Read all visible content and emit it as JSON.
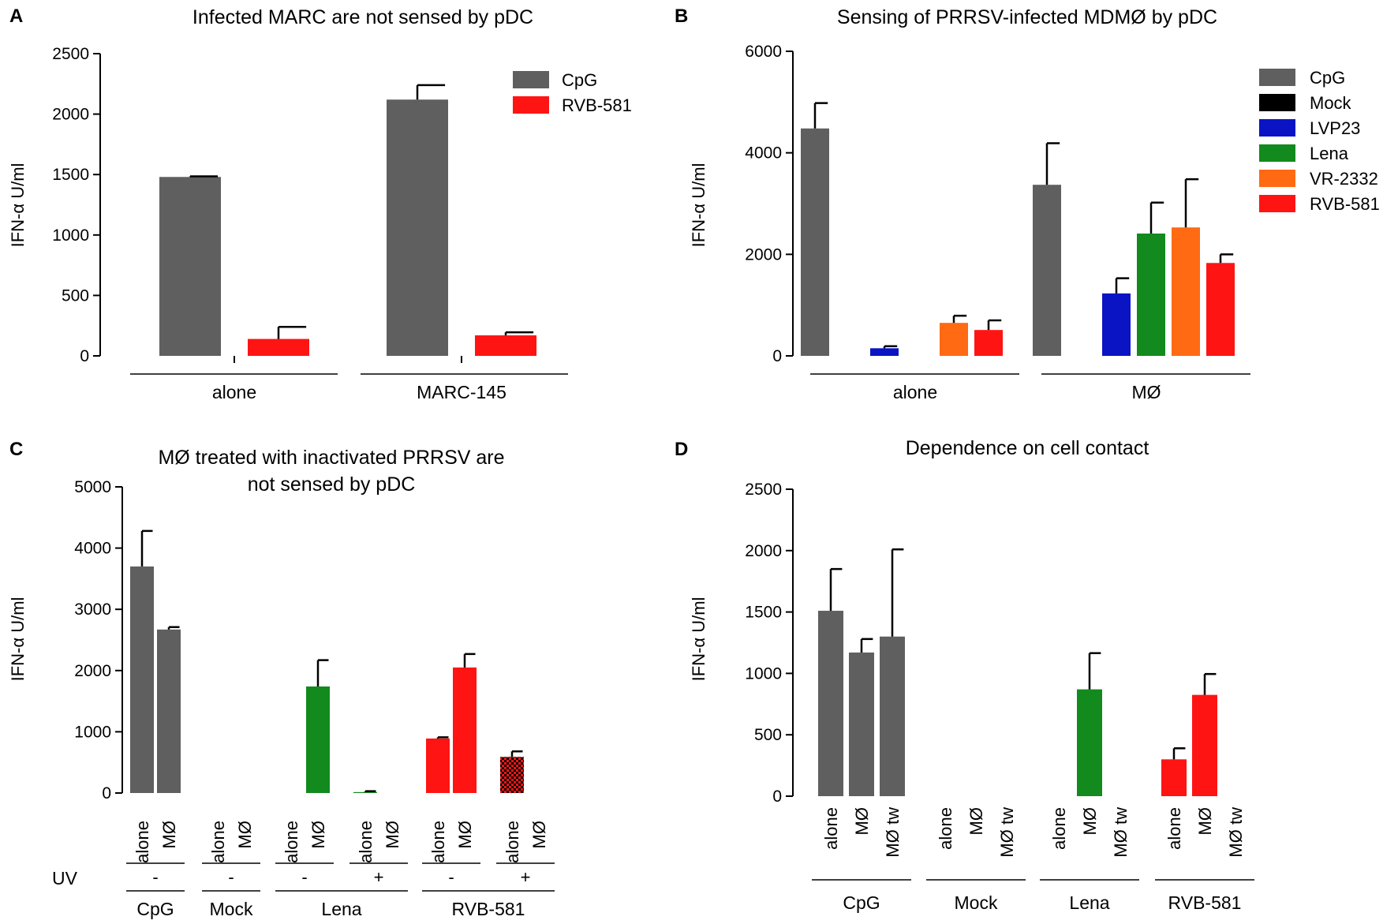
{
  "colors": {
    "CpG": "#5f5f5f",
    "Mock": "#000000",
    "LVP23": "#0a14c4",
    "Lena": "#128a1e",
    "VR-2332": "#ff6a13",
    "RVB-581": "#ff1414"
  },
  "chart_data": [
    {
      "panel": "A",
      "type": "bar",
      "title": "Infected MARC are not sensed by pDC",
      "ylabel": "IFN-α U/ml",
      "ylim": [
        0,
        2500
      ],
      "yticks": [
        "0",
        "500",
        "1000",
        "1500",
        "2000",
        "2500"
      ],
      "groups": [
        "alone",
        "MARC-145"
      ],
      "legend": [
        "CpG",
        "RVB-581"
      ],
      "series": [
        {
          "name": "CpG",
          "values": [
            1480,
            2120
          ],
          "errors": [
            5,
            120
          ]
        },
        {
          "name": "RVB-581",
          "values": [
            140,
            170
          ],
          "errors": [
            100,
            25
          ]
        }
      ]
    },
    {
      "panel": "B",
      "type": "bar",
      "title": "Sensing of PRRSV-infected MDMØ by pDC",
      "ylabel": "IFN-α U/ml",
      "ylim": [
        0,
        6000
      ],
      "yticks": [
        "0",
        "2000",
        "4000",
        "6000"
      ],
      "groups": [
        "alone",
        "MØ"
      ],
      "legend": [
        "CpG",
        "Mock",
        "LVP23",
        "Lena",
        "VR-2332",
        "RVB-581"
      ],
      "series": [
        {
          "name": "CpG",
          "values": [
            4480,
            3370
          ],
          "errors": [
            500,
            820
          ]
        },
        {
          "name": "Mock",
          "values": [
            0,
            0
          ],
          "errors": [
            0,
            0
          ]
        },
        {
          "name": "LVP23",
          "values": [
            150,
            1230
          ],
          "errors": [
            40,
            300
          ]
        },
        {
          "name": "Lena",
          "values": [
            0,
            2410
          ],
          "errors": [
            0,
            610
          ]
        },
        {
          "name": "VR-2332",
          "values": [
            650,
            2530
          ],
          "errors": [
            140,
            950
          ]
        },
        {
          "name": "RVB-581",
          "values": [
            510,
            1830
          ],
          "errors": [
            190,
            170
          ]
        }
      ]
    },
    {
      "panel": "C",
      "type": "bar",
      "title": [
        "MØ treated with inactivated PRRSV are",
        "not sensed by pDC"
      ],
      "ylabel": "IFN-α U/ml",
      "ylim": [
        0,
        5000
      ],
      "yticks": [
        "0",
        "1000",
        "2000",
        "3000",
        "4000",
        "5000"
      ],
      "row_label": "UV",
      "groups": [
        {
          "label": "CpG",
          "uv": [
            "-"
          ],
          "bars": [
            {
              "cat": "alone",
              "value": 3700,
              "error": 580,
              "color": "CpG"
            },
            {
              "cat": "MØ",
              "value": 2670,
              "error": 40,
              "color": "CpG"
            }
          ]
        },
        {
          "label": "Mock",
          "uv": [
            "-"
          ],
          "bars": [
            {
              "cat": "alone",
              "value": 0,
              "error": 0,
              "color": "Mock"
            },
            {
              "cat": "MØ",
              "value": 0,
              "error": 0,
              "color": "Mock"
            }
          ]
        },
        {
          "label": "Lena",
          "uv": [
            "-",
            "+"
          ],
          "bars": [
            {
              "cat": "alone",
              "value": 0,
              "error": 0,
              "color": "Lena"
            },
            {
              "cat": "MØ",
              "value": 1740,
              "error": 430,
              "color": "Lena"
            },
            {
              "cat": "alone",
              "value": 15,
              "error": 15,
              "color": "Lena"
            },
            {
              "cat": "MØ",
              "value": 0,
              "error": 0,
              "color": "Lena"
            }
          ]
        },
        {
          "label": "RVB-581",
          "uv": [
            "-",
            "+"
          ],
          "bars": [
            {
              "cat": "alone",
              "value": 890,
              "error": 20,
              "color": "RVB-581"
            },
            {
              "cat": "MØ",
              "value": 2050,
              "error": 220,
              "color": "RVB-581"
            },
            {
              "cat": "alone",
              "value": 590,
              "error": 90,
              "color": "RVB-581",
              "pattern": true
            },
            {
              "cat": "MØ",
              "value": 0,
              "error": 0,
              "color": "RVB-581"
            }
          ]
        }
      ]
    },
    {
      "panel": "D",
      "type": "bar",
      "title": "Dependence on cell contact",
      "ylabel": "IFN-α U/ml",
      "ylim": [
        0,
        2500
      ],
      "yticks": [
        "0",
        "500",
        "1000",
        "1500",
        "2000",
        "2500"
      ],
      "groups": [
        {
          "label": "CpG",
          "bars": [
            {
              "cat": "alone",
              "value": 1510,
              "error": 340,
              "color": "CpG"
            },
            {
              "cat": "MØ",
              "value": 1170,
              "error": 110,
              "color": "CpG"
            },
            {
              "cat": "MØ tw",
              "value": 1300,
              "error": 710,
              "color": "CpG"
            }
          ]
        },
        {
          "label": "Mock",
          "bars": [
            {
              "cat": "alone",
              "value": 0,
              "error": 0,
              "color": "Mock"
            },
            {
              "cat": "MØ",
              "value": 0,
              "error": 0,
              "color": "Mock"
            },
            {
              "cat": "MØ tw",
              "value": 0,
              "error": 0,
              "color": "Mock"
            }
          ]
        },
        {
          "label": "Lena",
          "bars": [
            {
              "cat": "alone",
              "value": 0,
              "error": 0,
              "color": "Lena"
            },
            {
              "cat": "MØ",
              "value": 870,
              "error": 295,
              "color": "Lena"
            },
            {
              "cat": "MØ tw",
              "value": 0,
              "error": 0,
              "color": "Lena"
            }
          ]
        },
        {
          "label": "RVB-581",
          "bars": [
            {
              "cat": "alone",
              "value": 300,
              "error": 90,
              "color": "RVB-581"
            },
            {
              "cat": "MØ",
              "value": 825,
              "error": 170,
              "color": "RVB-581"
            },
            {
              "cat": "MØ tw",
              "value": 0,
              "error": 0,
              "color": "RVB-581"
            }
          ]
        }
      ]
    }
  ]
}
